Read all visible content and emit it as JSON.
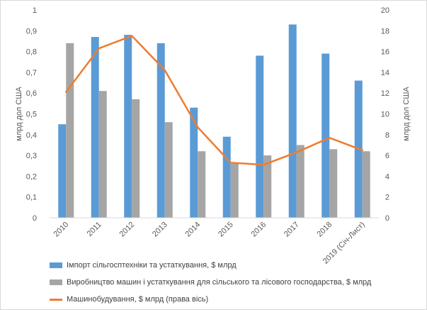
{
  "chart_data": {
    "type": "bar",
    "categories": [
      "2010",
      "2011",
      "2012",
      "2013",
      "2014",
      "2015",
      "2016",
      "2017",
      "2018",
      "2019 (Січ-Лист)"
    ],
    "series": [
      {
        "name": "Імпорт сільгосптехніки та устаткування, $ млрд",
        "type": "bar",
        "axis": "left",
        "color": "#5b9bd5",
        "values": [
          0.45,
          0.87,
          0.88,
          0.84,
          0.53,
          0.39,
          0.78,
          0.93,
          0.79,
          0.66
        ]
      },
      {
        "name": "Виробництво машин і устаткування для сільського та лісового господарства, $ млрд",
        "type": "bar",
        "axis": "left",
        "color": "#a5a5a5",
        "values": [
          0.84,
          0.61,
          0.57,
          0.46,
          0.32,
          0.26,
          0.3,
          0.35,
          0.33,
          0.32
        ]
      },
      {
        "name": "Машинобудування, $ млрд (права вісь)",
        "type": "line",
        "axis": "right",
        "color": "#ed7d31",
        "values": [
          12.1,
          16.3,
          17.5,
          14.2,
          8.7,
          5.3,
          5.1,
          6.3,
          7.7,
          6.5
        ]
      }
    ],
    "y_left": {
      "label": "млрд дол США",
      "range": [
        0,
        1
      ],
      "ticks": [
        "0",
        "0,1",
        "0,2",
        "0,3",
        "0,4",
        "0,5",
        "0,6",
        "0,7",
        "0,8",
        "0,9",
        "1"
      ]
    },
    "y_right": {
      "label": "млрд дол США",
      "range": [
        0,
        20
      ],
      "ticks": [
        "0",
        "2",
        "4",
        "6",
        "8",
        "10",
        "12",
        "14",
        "16",
        "18",
        "20"
      ]
    },
    "grid": false,
    "legend_position": "bottom"
  }
}
